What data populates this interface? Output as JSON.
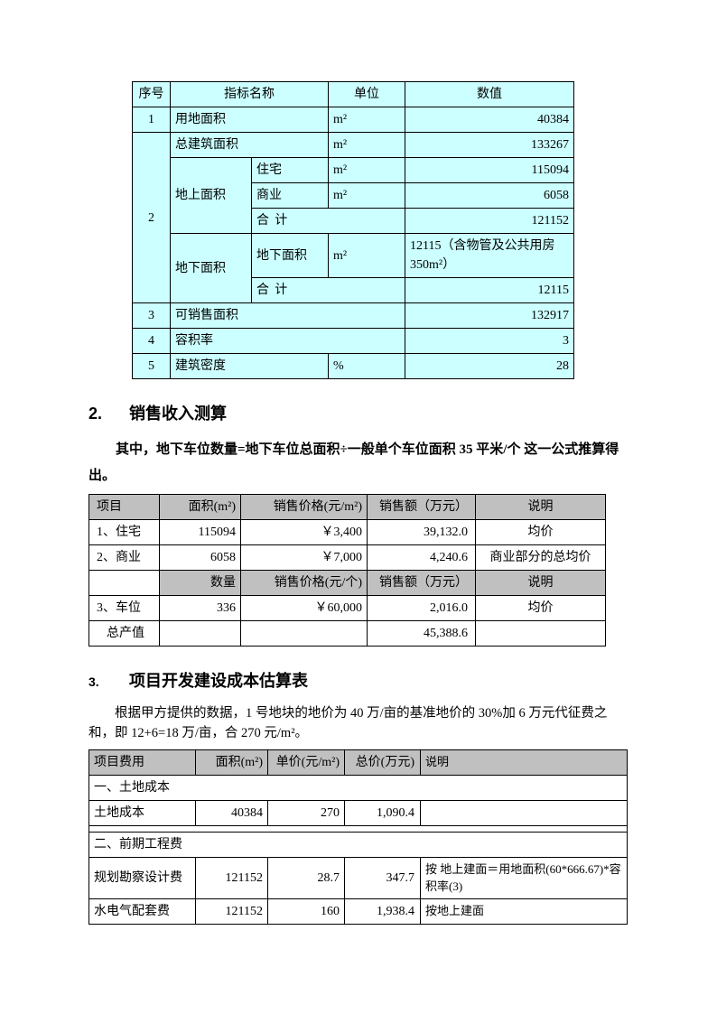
{
  "table1": {
    "bg_color": "#ccffff",
    "border_color": "#000000",
    "headers": {
      "seq": "序号",
      "name": "指标名称",
      "unit": "单位",
      "value": "数值"
    },
    "rows": {
      "r1": {
        "seq": "1",
        "name": "用地面积",
        "unit": "m²",
        "value": "40384"
      },
      "r2_total": {
        "seq": "2",
        "name": "总建筑面积",
        "unit": "m²",
        "value": "133267"
      },
      "r2_ag": {
        "label": "地上面积",
        "res": {
          "sub": "住宅",
          "unit": "m²",
          "value": "115094"
        },
        "com": {
          "sub": "商业",
          "unit": "m²",
          "value": "6058"
        },
        "sum": {
          "sub": "合    计",
          "value": "121152"
        }
      },
      "r2_ug": {
        "label": "地下面积",
        "area": {
          "sub": "地下面积",
          "unit": "m²",
          "value": "12115（含物管及公共用房350m²）"
        },
        "sum": {
          "sub": "合    计",
          "value": "12115"
        }
      },
      "r3": {
        "seq": "3",
        "name": "可销售面积",
        "value": "132917"
      },
      "r4": {
        "seq": "4",
        "name": "容积率",
        "value": "3"
      },
      "r5": {
        "seq": "5",
        "name": "建筑密度",
        "unit": "%",
        "value": "28"
      }
    }
  },
  "section2": {
    "title": "销售收入测算",
    "num": "2.",
    "para": "其中，地下车位数量=地下车位总面积÷一般单个车位面积 35 平米/个  这一公式推算得出。"
  },
  "table2": {
    "header_bg": "#c0c0c0",
    "h1": {
      "c1": "项目",
      "c2": "面积(m²)",
      "c3": "销售价格(元/m²)",
      "c4": "销售额（万元）",
      "c5": "说明"
    },
    "r1": {
      "c1": "1、住宅",
      "c2": "115094",
      "c3": "￥3,400",
      "c4": "39,132.0",
      "c5": "均价"
    },
    "r2": {
      "c1": "2、商业",
      "c2": "6058",
      "c3": "￥7,000",
      "c4": "4,240.6",
      "c5": "商业部分的总均价"
    },
    "h2": {
      "c1": "",
      "c2": "数量",
      "c3": "销售价格(元/个)",
      "c4": "销售额（万元）",
      "c5": "说明"
    },
    "r3": {
      "c1": "3、车位",
      "c2": "336",
      "c3": "￥60,000",
      "c4": "2,016.0",
      "c5": "均价"
    },
    "r4": {
      "c1": "总产值",
      "c4": "45,388.6"
    }
  },
  "section3": {
    "title": "项目开发建设成本估算表",
    "num": "3.",
    "para": "根据甲方提供的数据，1 号地块的地价为 40 万/亩的基准地价的 30%加 6 万元代征费之和，即 12+6=18 万/亩，合 270 元/m²。"
  },
  "table3": {
    "header_bg": "#c0c0c0",
    "h": {
      "c1": "项目费用",
      "c2": "面积(m²)",
      "c3": "单价(元/m²)",
      "c4": "总价(万元)",
      "c5": "说明"
    },
    "r1": {
      "c1": "一、土地成本"
    },
    "r2": {
      "c1": "土地成本",
      "c2": "40384",
      "c3": "270",
      "c4": "1,090.4"
    },
    "blank": "",
    "r3": {
      "c1": "二、前期工程费"
    },
    "r4": {
      "c1": "规划勘察设计费",
      "c2": "121152",
      "c3": "28.7",
      "c4": "347.7",
      "c5": "按  地上建面＝用地面积(60*666.67)*容积率(3)"
    },
    "r5": {
      "c1": "水电气配套费",
      "c2": "121152",
      "c3": "160",
      "c4": "1,938.4",
      "c5": "按地上建面"
    }
  }
}
